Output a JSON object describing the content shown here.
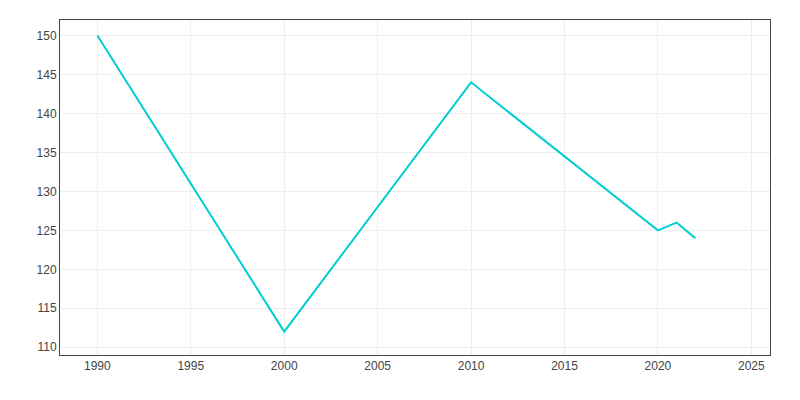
{
  "chart_data": {
    "type": "line",
    "x": [
      1990,
      2000,
      2010,
      2020,
      2021,
      2022
    ],
    "values": [
      150,
      112,
      144,
      125,
      126,
      124
    ],
    "color": "#00CED1",
    "xlim": [
      1988,
      2026
    ],
    "ylim": [
      109,
      152
    ],
    "xticks": [
      1990,
      1995,
      2000,
      2005,
      2010,
      2015,
      2020,
      2025
    ],
    "yticks": [
      110,
      115,
      120,
      125,
      130,
      135,
      140,
      145,
      150
    ],
    "grid": true
  }
}
